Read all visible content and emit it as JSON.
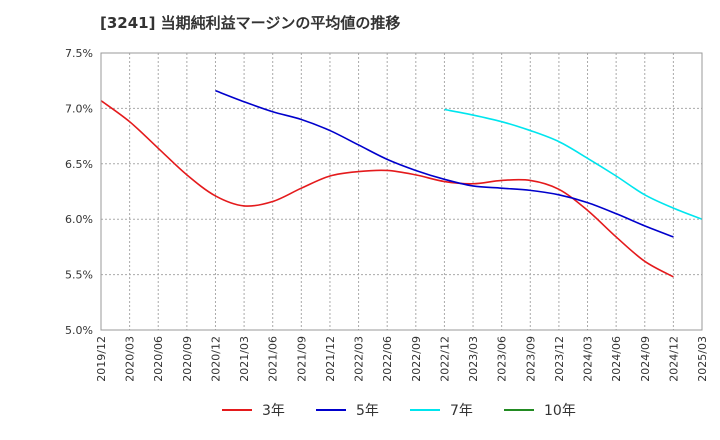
{
  "title": "[3241]  当期純利益マージンの平均値の推移",
  "chart_data": {
    "type": "line",
    "ylim": [
      5.0,
      7.5
    ],
    "y_ticks": [
      5.0,
      5.5,
      6.0,
      6.5,
      7.0,
      7.5
    ],
    "y_tick_labels": [
      "5.0%",
      "5.5%",
      "6.0%",
      "6.5%",
      "7.0%",
      "7.5%"
    ],
    "x_ticks": [
      "2019/12",
      "2020/03",
      "2020/06",
      "2020/09",
      "2020/12",
      "2021/03",
      "2021/06",
      "2021/09",
      "2021/12",
      "2022/03",
      "2022/06",
      "2022/09",
      "2022/12",
      "2023/03",
      "2023/06",
      "2023/09",
      "2023/12",
      "2024/03",
      "2024/06",
      "2024/09",
      "2024/12",
      "2025/03"
    ],
    "grid": true,
    "legend_position": "bottom",
    "series": [
      {
        "name": "3年",
        "color": "#e41a1c",
        "points": [
          [
            "2019/12",
            7.07
          ],
          [
            "2020/03",
            6.88
          ],
          [
            "2020/06",
            6.64
          ],
          [
            "2020/09",
            6.4
          ],
          [
            "2020/12",
            6.21
          ],
          [
            "2021/03",
            6.12
          ],
          [
            "2021/06",
            6.16
          ],
          [
            "2021/09",
            6.28
          ],
          [
            "2021/12",
            6.39
          ],
          [
            "2022/03",
            6.43
          ],
          [
            "2022/06",
            6.44
          ],
          [
            "2022/09",
            6.4
          ],
          [
            "2022/12",
            6.34
          ],
          [
            "2023/03",
            6.32
          ],
          [
            "2023/06",
            6.35
          ],
          [
            "2023/09",
            6.35
          ],
          [
            "2023/12",
            6.27
          ],
          [
            "2024/03",
            6.08
          ],
          [
            "2024/06",
            5.84
          ],
          [
            "2024/09",
            5.62
          ],
          [
            "2024/12",
            5.48
          ]
        ]
      },
      {
        "name": "5年",
        "color": "#0000cc",
        "points": [
          [
            "2020/12",
            7.16
          ],
          [
            "2021/03",
            7.06
          ],
          [
            "2021/06",
            6.97
          ],
          [
            "2021/09",
            6.9
          ],
          [
            "2021/12",
            6.8
          ],
          [
            "2022/03",
            6.67
          ],
          [
            "2022/06",
            6.54
          ],
          [
            "2022/09",
            6.44
          ],
          [
            "2022/12",
            6.36
          ],
          [
            "2023/03",
            6.3
          ],
          [
            "2023/06",
            6.28
          ],
          [
            "2023/09",
            6.26
          ],
          [
            "2023/12",
            6.22
          ],
          [
            "2024/03",
            6.15
          ],
          [
            "2024/06",
            6.05
          ],
          [
            "2024/09",
            5.94
          ],
          [
            "2024/12",
            5.84
          ]
        ]
      },
      {
        "name": "7年",
        "color": "#00e5ee",
        "points": [
          [
            "2022/12",
            6.99
          ],
          [
            "2023/03",
            6.94
          ],
          [
            "2023/06",
            6.88
          ],
          [
            "2023/09",
            6.8
          ],
          [
            "2023/12",
            6.7
          ],
          [
            "2024/03",
            6.55
          ],
          [
            "2024/06",
            6.39
          ],
          [
            "2024/09",
            6.22
          ],
          [
            "2024/12",
            6.1
          ],
          [
            "2025/03",
            6.0
          ]
        ]
      },
      {
        "name": "10年",
        "color": "#228b22",
        "points": []
      }
    ]
  }
}
